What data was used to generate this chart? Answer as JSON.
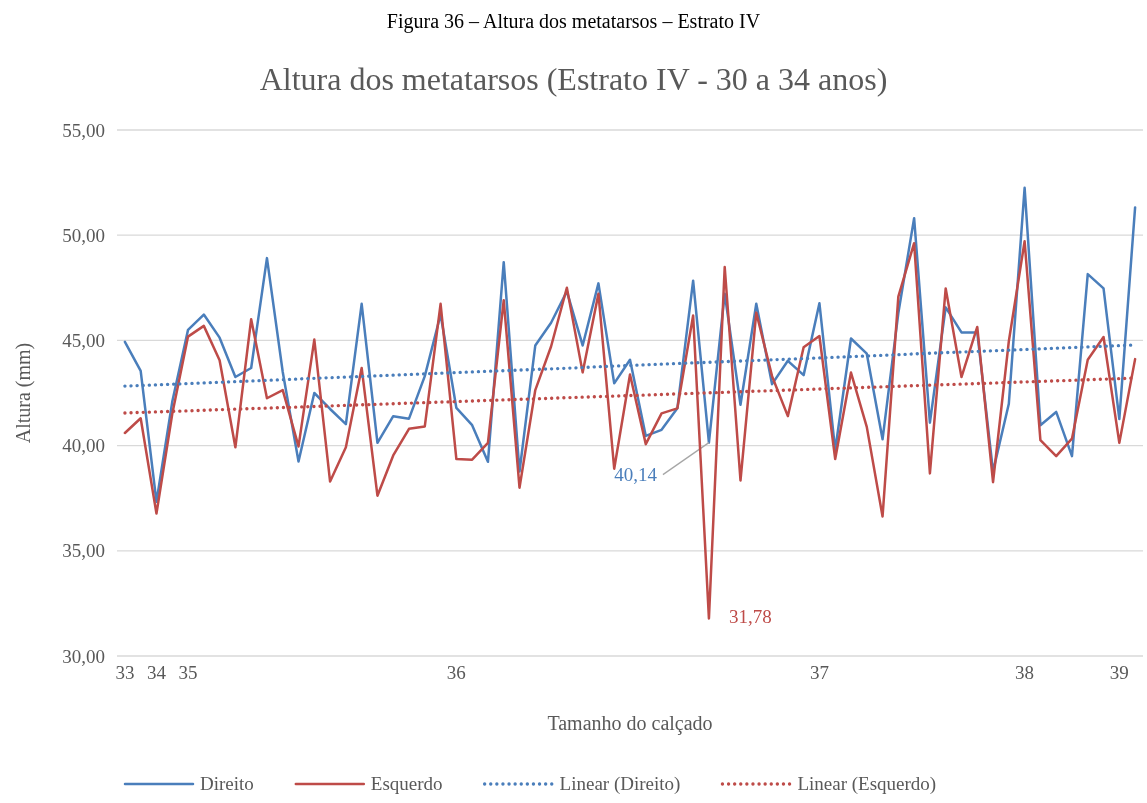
{
  "chart_data": {
    "type": "line",
    "title": "Figura 36 – Altura dos metatarsos – Estrato IV",
    "subtitle": "Altura dos metatarsos (Estrato IV - 30 a 34 anos)",
    "xlabel": "Tamanho do calçado",
    "ylabel": "Altura (mm)",
    "categories": [
      "33",
      null,
      "34",
      null,
      "35",
      null,
      null,
      null,
      null,
      null,
      null,
      null,
      null,
      null,
      null,
      null,
      null,
      null,
      null,
      null,
      null,
      "36",
      null,
      null,
      null,
      null,
      null,
      null,
      null,
      null,
      null,
      null,
      null,
      null,
      null,
      null,
      null,
      null,
      null,
      null,
      null,
      null,
      null,
      null,
      "37",
      null,
      null,
      null,
      null,
      null,
      null,
      null,
      null,
      null,
      null,
      null,
      null,
      "38",
      null,
      null,
      null,
      null,
      null,
      "39",
      null
    ],
    "ylim": [
      30,
      55
    ],
    "yticks": [
      {
        "value": 30,
        "label": "30,00"
      },
      {
        "value": 35,
        "label": "35,00"
      },
      {
        "value": 40,
        "label": "40,00"
      },
      {
        "value": 45,
        "label": "45,00"
      },
      {
        "value": 50,
        "label": "50,00"
      },
      {
        "value": 55,
        "label": "55,00"
      }
    ],
    "grid": "y",
    "legend": "bottom",
    "marker": "none",
    "series": [
      {
        "name": "Direito",
        "color": "#4a7ebb",
        "line_style": "solid",
        "values": [
          44.93,
          43.55,
          37.33,
          42.08,
          45.5,
          46.23,
          45.13,
          43.26,
          43.69,
          48.91,
          43.5,
          39.24,
          42.5,
          41.74,
          41.02,
          46.74,
          40.13,
          41.4,
          41.28,
          43.3,
          46.23,
          41.79,
          40.97,
          39.23,
          48.72,
          38.77,
          44.76,
          45.84,
          47.33,
          44.76,
          47.71,
          42.96,
          44.08,
          40.46,
          40.75,
          41.77,
          47.84,
          40.14,
          47.22,
          41.94,
          46.74,
          42.92,
          44.03,
          43.35,
          46.77,
          39.79,
          45.09,
          44.37,
          40.3,
          46.3,
          50.81,
          41.09,
          46.57,
          45.38,
          45.38,
          38.77,
          41.99,
          52.25,
          40.97,
          41.6,
          39.5,
          48.15,
          47.47,
          41.26,
          51.32
        ],
        "value_labels": [
          null,
          null,
          null,
          null,
          null,
          null,
          null,
          null,
          null,
          null,
          null,
          null,
          null,
          null,
          null,
          null,
          null,
          null,
          null,
          null,
          null,
          null,
          null,
          null,
          null,
          null,
          null,
          null,
          null,
          null,
          null,
          null,
          null,
          null,
          null,
          null,
          null,
          "40,14",
          null,
          null,
          null,
          null,
          null,
          null,
          null,
          null,
          null,
          null,
          null,
          null,
          null,
          null,
          null,
          null,
          null,
          null,
          null,
          null,
          null,
          null,
          null,
          null,
          null,
          null,
          null
        ]
      },
      {
        "name": "Esquerdo",
        "color": "#be4b48",
        "line_style": "solid",
        "values": [
          40.6,
          41.3,
          36.77,
          41.5,
          45.18,
          45.69,
          44.06,
          39.92,
          46.01,
          42.25,
          42.64,
          39.96,
          45.04,
          38.29,
          39.92,
          43.69,
          37.62,
          39.53,
          40.8,
          40.91,
          46.74,
          39.36,
          39.33,
          40.13,
          46.91,
          38.0,
          42.64,
          44.71,
          47.5,
          43.48,
          47.22,
          38.9,
          43.38,
          40.07,
          41.53,
          41.77,
          46.18,
          31.78,
          48.49,
          38.34,
          46.32,
          43.3,
          41.4,
          44.67,
          45.21,
          39.36,
          43.47,
          40.89,
          36.63,
          47.08,
          49.62,
          38.68,
          47.47,
          43.26,
          45.64,
          38.26,
          44.96,
          49.71,
          40.26,
          39.5,
          40.33,
          44.08,
          45.16,
          40.13,
          44.11
        ],
        "value_labels": [
          null,
          null,
          null,
          null,
          null,
          null,
          null,
          null,
          null,
          null,
          null,
          null,
          null,
          null,
          null,
          null,
          null,
          null,
          null,
          null,
          null,
          null,
          null,
          null,
          null,
          null,
          null,
          null,
          null,
          null,
          null,
          null,
          null,
          null,
          null,
          null,
          null,
          "31,78",
          null,
          null,
          null,
          null,
          null,
          null,
          null,
          null,
          null,
          null,
          null,
          null,
          null,
          null,
          null,
          null,
          null,
          null,
          null,
          null,
          null,
          null,
          null,
          null,
          null,
          null,
          null
        ]
      },
      {
        "name": "Linear (Direito)",
        "color": "#4a7ebb",
        "line_style": "dotted",
        "values": [
          42.83,
          42.86,
          42.89,
          42.92,
          42.95,
          42.98,
          43.01,
          43.04,
          43.07,
          43.1,
          43.13,
          43.17,
          43.2,
          43.23,
          43.26,
          43.29,
          43.32,
          43.35,
          43.38,
          43.41,
          43.44,
          43.47,
          43.5,
          43.53,
          43.56,
          43.59,
          43.62,
          43.65,
          43.68,
          43.71,
          43.75,
          43.78,
          43.81,
          43.84,
          43.87,
          43.9,
          43.93,
          43.96,
          43.99,
          44.02,
          44.05,
          44.08,
          44.11,
          44.14,
          44.17,
          44.2,
          44.23,
          44.26,
          44.29,
          44.32,
          44.36,
          44.39,
          44.42,
          44.45,
          44.48,
          44.51,
          44.54,
          44.57,
          44.6,
          44.63,
          44.66,
          44.69,
          44.72,
          44.75,
          44.78
        ]
      },
      {
        "name": "Linear (Esquerdo)",
        "color": "#be4b48",
        "line_style": "dotted",
        "values": [
          41.55,
          41.58,
          41.6,
          41.63,
          41.65,
          41.68,
          41.71,
          41.73,
          41.76,
          41.78,
          41.81,
          41.83,
          41.86,
          41.89,
          41.91,
          41.94,
          41.96,
          41.99,
          42.02,
          42.04,
          42.07,
          42.09,
          42.12,
          42.15,
          42.17,
          42.2,
          42.22,
          42.25,
          42.28,
          42.3,
          42.33,
          42.35,
          42.38,
          42.4,
          42.43,
          42.46,
          42.48,
          42.51,
          42.53,
          42.56,
          42.59,
          42.61,
          42.64,
          42.66,
          42.69,
          42.72,
          42.74,
          42.77,
          42.79,
          42.82,
          42.85,
          42.87,
          42.9,
          42.92,
          42.95,
          42.97,
          43.0,
          43.03,
          43.05,
          43.08,
          43.1,
          43.13,
          43.16,
          43.18,
          43.21
        ]
      }
    ]
  }
}
